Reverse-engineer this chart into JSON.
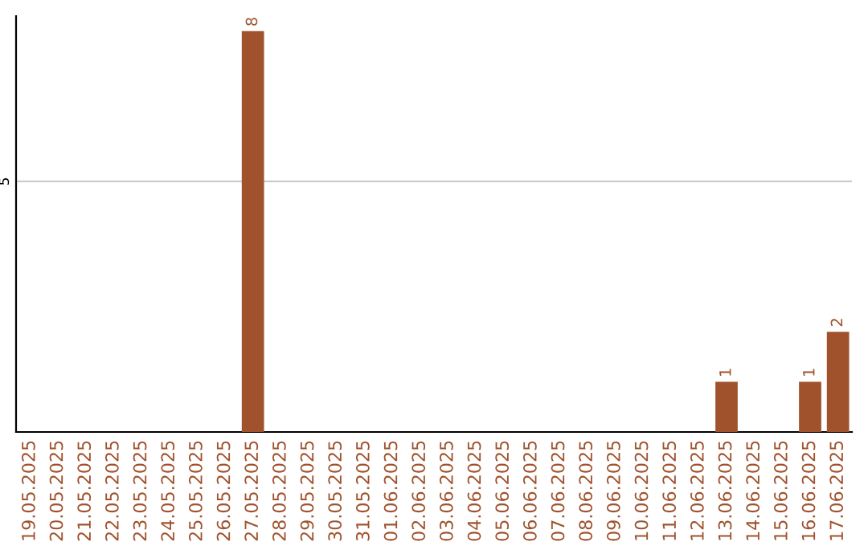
{
  "chart_data": {
    "type": "bar",
    "categories": [
      "19.05.2025",
      "20.05.2025",
      "21.05.2025",
      "22.05.2025",
      "23.05.2025",
      "24.05.2025",
      "25.05.2025",
      "26.05.2025",
      "27.05.2025",
      "28.05.2025",
      "29.05.2025",
      "30.05.2025",
      "31.05.2025",
      "01.06.2025",
      "02.06.2025",
      "03.06.2025",
      "04.06.2025",
      "05.06.2025",
      "06.06.2025",
      "07.06.2025",
      "08.06.2025",
      "09.06.2025",
      "10.06.2025",
      "11.06.2025",
      "12.06.2025",
      "13.06.2025",
      "14.06.2025",
      "15.06.2025",
      "16.06.2025",
      "17.06.2025"
    ],
    "values": [
      0,
      0,
      0,
      0,
      0,
      0,
      0,
      0,
      8,
      0,
      0,
      0,
      0,
      0,
      0,
      0,
      0,
      0,
      0,
      0,
      0,
      0,
      0,
      0,
      0,
      1,
      0,
      0,
      1,
      2
    ],
    "value_labels": [
      null,
      null,
      null,
      null,
      null,
      null,
      null,
      null,
      "8",
      null,
      null,
      null,
      null,
      null,
      null,
      null,
      null,
      null,
      null,
      null,
      null,
      null,
      null,
      null,
      null,
      "1",
      null,
      null,
      "1",
      "2"
    ],
    "color": "#a0522d",
    "ylim": [
      0,
      8.3
    ],
    "yticks": [
      5
    ],
    "grid": "y",
    "legend": false
  }
}
